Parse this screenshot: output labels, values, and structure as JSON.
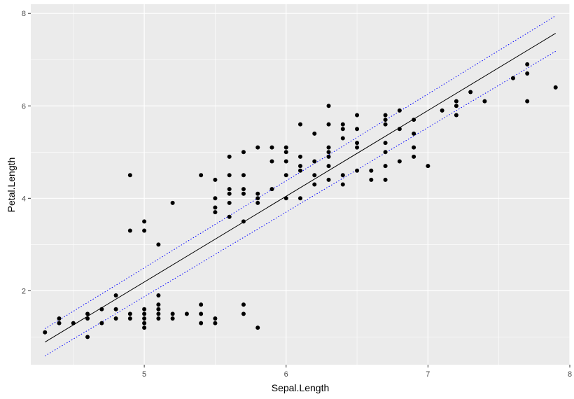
{
  "chart_data": {
    "type": "scatter",
    "xlabel": "Sepal.Length",
    "ylabel": "Petal.Length",
    "xlim": [
      4.2,
      8.0
    ],
    "ylim": [
      0.4,
      8.2
    ],
    "x_ticks": [
      5,
      6,
      7,
      8
    ],
    "y_ticks": [
      2,
      4,
      6,
      8
    ],
    "x_tick_labels": [
      "5",
      "6",
      "7",
      "8"
    ],
    "y_tick_labels": [
      "2",
      "4",
      "6",
      "8"
    ],
    "grid": true,
    "points": [
      [
        4.3,
        1.1
      ],
      [
        4.4,
        1.3
      ],
      [
        4.4,
        1.4
      ],
      [
        4.5,
        1.3
      ],
      [
        4.6,
        1.0
      ],
      [
        4.6,
        1.4
      ],
      [
        4.6,
        1.5
      ],
      [
        4.7,
        1.3
      ],
      [
        4.7,
        1.6
      ],
      [
        4.8,
        1.4
      ],
      [
        4.8,
        1.6
      ],
      [
        4.8,
        1.9
      ],
      [
        4.9,
        1.4
      ],
      [
        4.9,
        1.5
      ],
      [
        4.9,
        3.3
      ],
      [
        4.9,
        4.5
      ],
      [
        5.0,
        1.2
      ],
      [
        5.0,
        1.3
      ],
      [
        5.0,
        1.4
      ],
      [
        5.0,
        1.5
      ],
      [
        5.0,
        1.6
      ],
      [
        5.0,
        3.3
      ],
      [
        5.0,
        3.5
      ],
      [
        5.1,
        1.4
      ],
      [
        5.1,
        1.5
      ],
      [
        5.1,
        1.6
      ],
      [
        5.1,
        1.7
      ],
      [
        5.1,
        1.9
      ],
      [
        5.1,
        3.0
      ],
      [
        5.2,
        1.4
      ],
      [
        5.2,
        1.5
      ],
      [
        5.2,
        3.9
      ],
      [
        5.3,
        1.5
      ],
      [
        5.4,
        1.3
      ],
      [
        5.4,
        1.5
      ],
      [
        5.4,
        1.7
      ],
      [
        5.4,
        4.5
      ],
      [
        5.5,
        1.3
      ],
      [
        5.5,
        1.4
      ],
      [
        5.5,
        3.7
      ],
      [
        5.5,
        3.8
      ],
      [
        5.5,
        4.0
      ],
      [
        5.5,
        4.4
      ],
      [
        5.6,
        3.6
      ],
      [
        5.6,
        3.9
      ],
      [
        5.6,
        4.1
      ],
      [
        5.6,
        4.2
      ],
      [
        5.6,
        4.5
      ],
      [
        5.6,
        4.9
      ],
      [
        5.7,
        1.5
      ],
      [
        5.7,
        1.7
      ],
      [
        5.7,
        3.5
      ],
      [
        5.7,
        4.1
      ],
      [
        5.7,
        4.2
      ],
      [
        5.7,
        4.5
      ],
      [
        5.7,
        5.0
      ],
      [
        5.8,
        1.2
      ],
      [
        5.8,
        3.9
      ],
      [
        5.8,
        4.0
      ],
      [
        5.8,
        4.1
      ],
      [
        5.8,
        5.1
      ],
      [
        5.9,
        4.2
      ],
      [
        5.9,
        4.8
      ],
      [
        5.9,
        5.1
      ],
      [
        6.0,
        4.0
      ],
      [
        6.0,
        4.5
      ],
      [
        6.0,
        4.8
      ],
      [
        6.0,
        5.0
      ],
      [
        6.0,
        5.1
      ],
      [
        6.1,
        4.0
      ],
      [
        6.1,
        4.6
      ],
      [
        6.1,
        4.7
      ],
      [
        6.1,
        4.9
      ],
      [
        6.1,
        5.6
      ],
      [
        6.2,
        4.3
      ],
      [
        6.2,
        4.5
      ],
      [
        6.2,
        4.8
      ],
      [
        6.2,
        5.4
      ],
      [
        6.3,
        4.4
      ],
      [
        6.3,
        4.7
      ],
      [
        6.3,
        4.9
      ],
      [
        6.3,
        5.0
      ],
      [
        6.3,
        5.1
      ],
      [
        6.3,
        5.6
      ],
      [
        6.3,
        6.0
      ],
      [
        6.4,
        4.3
      ],
      [
        6.4,
        4.5
      ],
      [
        6.4,
        5.3
      ],
      [
        6.4,
        5.5
      ],
      [
        6.4,
        5.6
      ],
      [
        6.5,
        4.6
      ],
      [
        6.5,
        5.1
      ],
      [
        6.5,
        5.2
      ],
      [
        6.5,
        5.5
      ],
      [
        6.5,
        5.8
      ],
      [
        6.6,
        4.4
      ],
      [
        6.6,
        4.6
      ],
      [
        6.7,
        4.4
      ],
      [
        6.7,
        4.7
      ],
      [
        6.7,
        5.0
      ],
      [
        6.7,
        5.2
      ],
      [
        6.7,
        5.6
      ],
      [
        6.7,
        5.7
      ],
      [
        6.7,
        5.8
      ],
      [
        6.8,
        4.8
      ],
      [
        6.8,
        5.5
      ],
      [
        6.8,
        5.9
      ],
      [
        6.9,
        4.9
      ],
      [
        6.9,
        5.1
      ],
      [
        6.9,
        5.4
      ],
      [
        6.9,
        5.7
      ],
      [
        7.0,
        4.7
      ],
      [
        7.1,
        5.9
      ],
      [
        7.2,
        5.8
      ],
      [
        7.2,
        6.0
      ],
      [
        7.2,
        6.1
      ],
      [
        7.3,
        6.3
      ],
      [
        7.4,
        6.1
      ],
      [
        7.6,
        6.6
      ],
      [
        7.7,
        6.1
      ],
      [
        7.7,
        6.7
      ],
      [
        7.7,
        6.9
      ],
      [
        7.9,
        6.4
      ]
    ],
    "fit_line": {
      "x": [
        4.3,
        7.9
      ],
      "y": [
        0.89,
        7.57
      ],
      "color": "#000000"
    },
    "band_upper": {
      "x": [
        4.3,
        7.9
      ],
      "y": [
        1.18,
        7.95
      ],
      "color": "#0000ff",
      "style": "dotted"
    },
    "band_lower": {
      "x": [
        4.3,
        7.9
      ],
      "y": [
        0.59,
        7.18
      ],
      "color": "#0000ff",
      "style": "dotted"
    },
    "colors": {
      "panel_bg": "#ebebeb",
      "grid_major": "#ffffff",
      "point": "#000000"
    }
  }
}
